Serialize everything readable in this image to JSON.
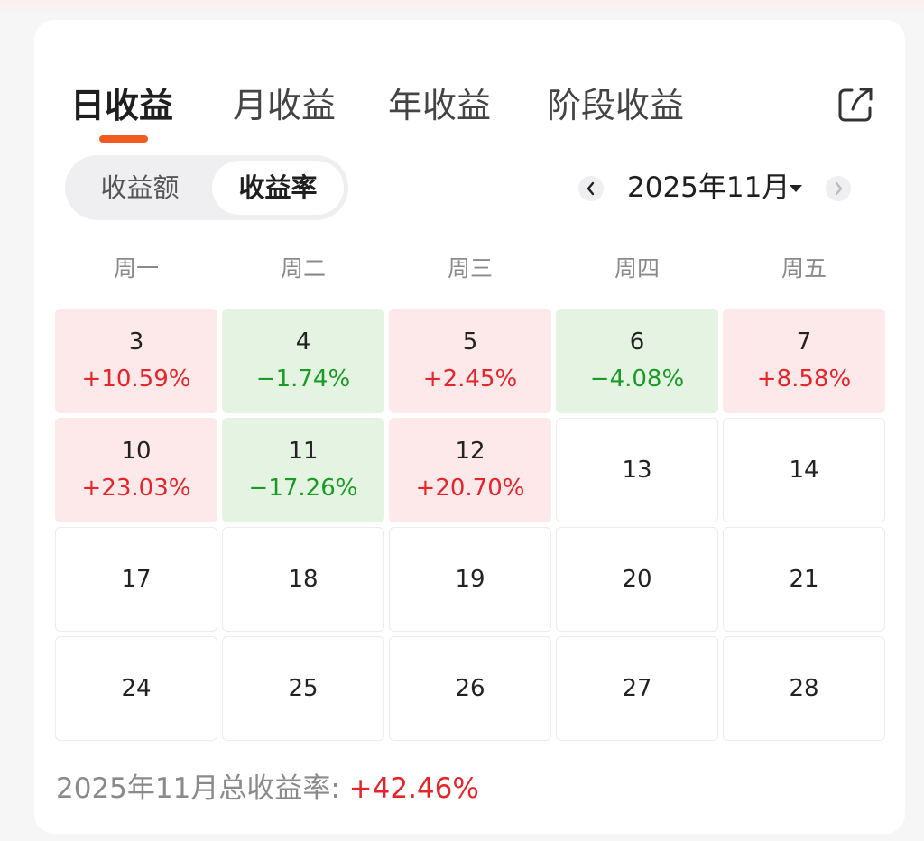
{
  "tabs": [
    {
      "label": "日收益",
      "active": true
    },
    {
      "label": "月收益",
      "active": false
    },
    {
      "label": "年收益",
      "active": false
    },
    {
      "label": "阶段收益",
      "active": false
    }
  ],
  "segment": {
    "left_label": "收益额",
    "right_label": "收益率",
    "selected": "收益率"
  },
  "month_nav": {
    "label": "2025年11月"
  },
  "weekdays": [
    "周一",
    "周二",
    "周三",
    "周四",
    "周五"
  ],
  "days": [
    {
      "day": "3",
      "pct": "+10.59%",
      "trend": "up"
    },
    {
      "day": "4",
      "pct": "−1.74%",
      "trend": "down"
    },
    {
      "day": "5",
      "pct": "+2.45%",
      "trend": "up"
    },
    {
      "day": "6",
      "pct": "−4.08%",
      "trend": "down"
    },
    {
      "day": "7",
      "pct": "+8.58%",
      "trend": "up"
    },
    {
      "day": "10",
      "pct": "+23.03%",
      "trend": "up"
    },
    {
      "day": "11",
      "pct": "−17.26%",
      "trend": "down"
    },
    {
      "day": "12",
      "pct": "+20.70%",
      "trend": "up"
    },
    {
      "day": "13",
      "pct": "",
      "trend": "none"
    },
    {
      "day": "14",
      "pct": "",
      "trend": "none"
    },
    {
      "day": "17",
      "pct": "",
      "trend": "none"
    },
    {
      "day": "18",
      "pct": "",
      "trend": "none"
    },
    {
      "day": "19",
      "pct": "",
      "trend": "none"
    },
    {
      "day": "20",
      "pct": "",
      "trend": "none"
    },
    {
      "day": "21",
      "pct": "",
      "trend": "none"
    },
    {
      "day": "24",
      "pct": "",
      "trend": "none"
    },
    {
      "day": "25",
      "pct": "",
      "trend": "none"
    },
    {
      "day": "26",
      "pct": "",
      "trend": "none"
    },
    {
      "day": "27",
      "pct": "",
      "trend": "none"
    },
    {
      "day": "28",
      "pct": "",
      "trend": "none"
    }
  ],
  "summary": {
    "label": "2025年11月总收益率:",
    "value": "+42.46%"
  },
  "colors": {
    "accent": "#f25a1f",
    "up": "#e5252a",
    "down": "#1a9b26",
    "up_bg": "#fde9ea",
    "down_bg": "#e5f4e2"
  },
  "icons": {
    "share": "share-icon",
    "prev": "chevron-left-icon",
    "next": "chevron-right-icon",
    "caret": "caret-down-icon"
  }
}
